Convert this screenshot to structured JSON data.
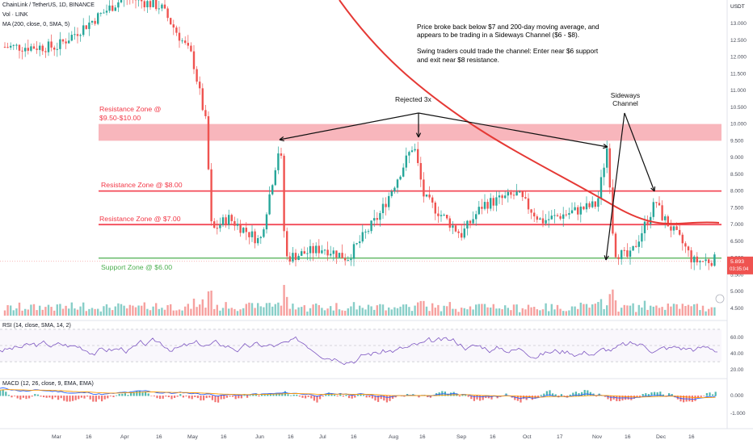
{
  "header": {
    "symbol": "ChainLink / TetherUS, 1D, BINANCE",
    "volume": "Vol · LINK",
    "ma": "MA (200, close, 0, SMA, 5)",
    "rsi": "RSI (14, close, SMA, 14, 2)",
    "macd": "MACD (12, 26, close, 9, EMA, EMA)",
    "currency": "USDT"
  },
  "notes": {
    "p1": "Price broke back below $7 and 200-day moving average, and appears to be trading in a Sideways Channel ($6 - $8).",
    "p2": "Swing traders could trade the channel: Enter near $6 support and exit near $8 resistance."
  },
  "zones": {
    "r1_line1": "Resistance Zone @",
    "r1_line2": "$9.50-$10.00",
    "r2": "Resistance Zone @ $8.00",
    "r3": "Resistance Zone @ $7.00",
    "s1": "Support Zone @ $6.00"
  },
  "annotations": {
    "rejected": "Rejected 3x",
    "channel_l1": "Sideways",
    "channel_l2": "Channel"
  },
  "price_tag": {
    "price": "5.893",
    "time": "03:35:04"
  },
  "colors": {
    "resistance": "#f23645",
    "zone_fill": "#f7a9b0",
    "support": "#4caf50",
    "up": "#26a69a",
    "down": "#ef5350",
    "ma": "#e53935",
    "rsi": "#7e57c2",
    "macd": "#2962ff",
    "signal": "#ff9800"
  },
  "chart_data": [
    {
      "type": "line",
      "title": "",
      "y_axis": {
        "labels": [
          "13.000",
          "12.500",
          "12.000",
          "11.500",
          "11.000",
          "10.500",
          "10.000",
          "9.500",
          "9.000",
          "8.500",
          "8.000",
          "7.500",
          "7.000",
          "6.500",
          "6.000",
          "5.500",
          "5.000",
          "4.500"
        ],
        "ylim": [
          4.4,
          13.5
        ]
      },
      "x_axis": {
        "labels": [
          "Mar",
          "16",
          "Apr",
          "16",
          "May",
          "16",
          "Jun",
          "16",
          "Jul",
          "16",
          "Aug",
          "16",
          "Sep",
          "16",
          "Oct",
          "17",
          "Nov",
          "16",
          "Dec",
          "16"
        ]
      },
      "series": [
        {
          "points": [
            [
              "Mar",
              12.3
            ],
            [
              "Apr",
              13.8
            ],
            [
              "Apr 16",
              13.5
            ],
            [
              "May",
              12.0
            ],
            [
              "May 10",
              10.0
            ],
            [
              "May 12",
              6.8
            ],
            [
              "May 20",
              7.2
            ],
            [
              "Jun",
              6.5
            ],
            [
              "Jun 12",
              9.5
            ],
            [
              "Jun 14",
              6.0
            ],
            [
              "Jul",
              6.3
            ],
            [
              "Jul 12",
              6.0
            ],
            [
              "Jul 28",
              7.3
            ],
            [
              "Aug 10",
              9.4
            ],
            [
              "Aug 16",
              7.8
            ],
            [
              "Sep",
              6.7
            ],
            [
              "Sep 15",
              7.6
            ],
            [
              "Oct",
              7.9
            ],
            [
              "Oct 15",
              7.1
            ],
            [
              "Nov",
              7.6
            ],
            [
              "Nov 7",
              9.4
            ],
            [
              "Nov 9",
              6.2
            ],
            [
              "Nov 16",
              6.0
            ],
            [
              "Nov 28",
              7.7
            ],
            [
              "Dec",
              7.3
            ],
            [
              "Dec 10",
              6.4
            ],
            [
              "Dec 16",
              5.9
            ],
            [
              "Dec 25",
              5.95
            ]
          ]
        }
      ],
      "ma_200": [
        [
          580,
          12.8
        ],
        [
          620,
          11.0
        ],
        [
          700,
          9.3
        ],
        [
          760,
          7.8
        ],
        [
          800,
          7.2
        ],
        [
          890,
          7.05
        ]
      ],
      "levels": {
        "resistance_zone": [
          9.5,
          10.0
        ],
        "resistance": [
          8.0,
          7.0
        ],
        "support": 6.0
      }
    },
    {
      "type": "line",
      "title": "RSI",
      "y_axis": {
        "labels": [
          "60.00",
          "40.00",
          "20.00"
        ]
      },
      "guides": [
        70,
        50,
        30
      ]
    },
    {
      "type": "bar",
      "title": "MACD",
      "y_axis": {
        "labels": [
          "0.000",
          "-1.000"
        ]
      }
    }
  ]
}
